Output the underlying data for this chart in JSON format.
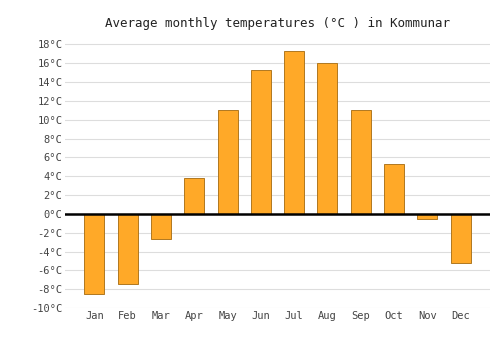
{
  "title": "Average monthly temperatures (°C ) in Kommunar",
  "months": [
    "Jan",
    "Feb",
    "Mar",
    "Apr",
    "May",
    "Jun",
    "Jul",
    "Aug",
    "Sep",
    "Oct",
    "Nov",
    "Dec"
  ],
  "values": [
    -8.5,
    -7.5,
    -2.7,
    3.8,
    11.0,
    15.3,
    17.3,
    16.0,
    11.0,
    5.3,
    -0.5,
    -5.2
  ],
  "bar_color": "#FFA928",
  "bar_edge_color": "#b07820",
  "ylim": [
    -10,
    19
  ],
  "yticks": [
    -10,
    -8,
    -6,
    -4,
    -2,
    0,
    2,
    4,
    6,
    8,
    10,
    12,
    14,
    16,
    18
  ],
  "ytick_labels": [
    "-10°C",
    "-8°C",
    "-6°C",
    "-4°C",
    "-2°C",
    "0°C",
    "2°C",
    "4°C",
    "6°C",
    "8°C",
    "10°C",
    "12°C",
    "14°C",
    "16°C",
    "18°C"
  ],
  "background_color": "#ffffff",
  "plot_bg_color": "#ffffff",
  "grid_color": "#dddddd",
  "title_fontsize": 9,
  "tick_fontsize": 7.5,
  "bar_width": 0.6
}
